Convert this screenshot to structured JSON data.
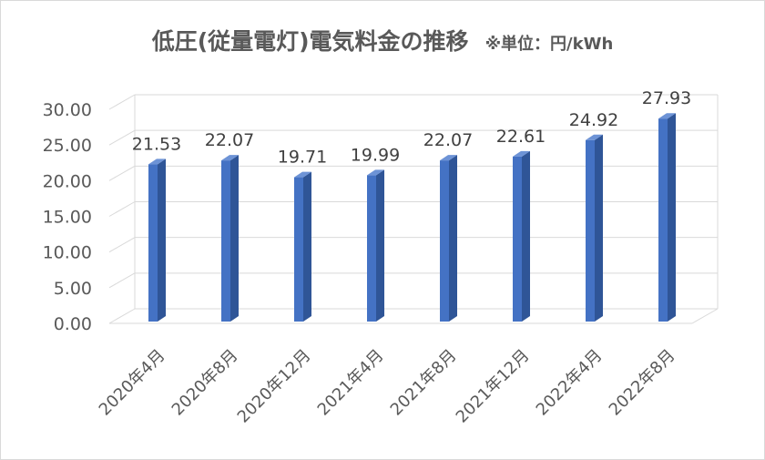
{
  "chart_data": {
    "type": "bar",
    "title": "低圧(従量電灯)電気料金の推移",
    "unit_note": "※単位：円/kWh",
    "categories": [
      "2020年4月",
      "2020年8月",
      "2020年12月",
      "2021年4月",
      "2021年8月",
      "2021年12月",
      "2022年4月",
      "2022年8月"
    ],
    "values": [
      21.53,
      22.07,
      19.71,
      19.99,
      22.07,
      22.61,
      24.92,
      27.93
    ],
    "value_labels": [
      "21.53",
      "22.07",
      "19.71",
      "19.99",
      "22.07",
      "22.61",
      "24.92",
      "27.93"
    ],
    "y_ticks": [
      "0.00",
      "5.00",
      "10.00",
      "15.00",
      "20.00",
      "25.00",
      "30.00"
    ],
    "ylim": [
      0,
      30
    ],
    "grid": true,
    "style": "3d-column",
    "colors": {
      "bar_front": "#4472c4",
      "bar_side": "#2f5597",
      "bar_top": "#6d93d6",
      "grid": "#d9d9d9",
      "text": "#595959"
    }
  }
}
